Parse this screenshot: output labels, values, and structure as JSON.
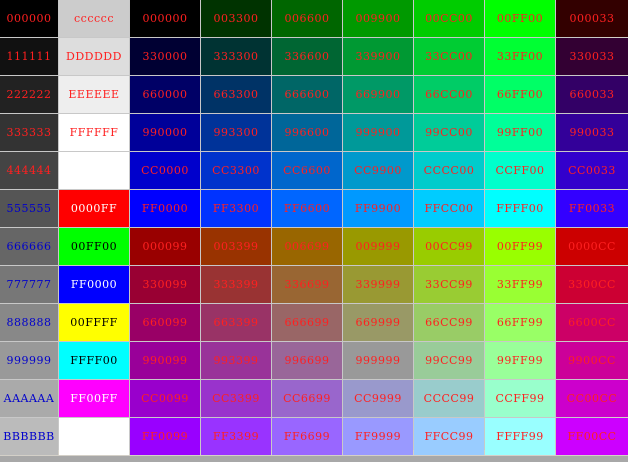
{
  "table": {
    "columns": [
      {
        "cells": [
          {
            "label": "000000",
            "bg": "#000000",
            "fg": "#ff2020"
          },
          {
            "label": "111111",
            "bg": "#111111",
            "fg": "#ff2020"
          },
          {
            "label": "222222",
            "bg": "#222222",
            "fg": "#ff2020"
          },
          {
            "label": "333333",
            "bg": "#333333",
            "fg": "#ff2020"
          },
          {
            "label": "444444",
            "bg": "#444444",
            "fg": "#ff2020"
          },
          {
            "label": "555555",
            "bg": "#555555",
            "fg": "#0000cc"
          },
          {
            "label": "666666",
            "bg": "#666666",
            "fg": "#0000cc"
          },
          {
            "label": "777777",
            "bg": "#777777",
            "fg": "#0000cc"
          },
          {
            "label": "888888",
            "bg": "#888888",
            "fg": "#0000cc"
          },
          {
            "label": "999999",
            "bg": "#999999",
            "fg": "#0000cc"
          },
          {
            "label": "AAAAAA",
            "bg": "#aaaaaa",
            "fg": "#0000cc"
          },
          {
            "label": "BBBBBB",
            "bg": "#bbbbbb",
            "fg": "#0000cc"
          }
        ]
      },
      {
        "cells": [
          {
            "label": "cccccc",
            "bg": "#cccccc",
            "fg": "#ff2020"
          },
          {
            "label": "DDDDDD",
            "bg": "#dddddd",
            "fg": "#ff2020"
          },
          {
            "label": "EEEEEE",
            "bg": "#eeeeee",
            "fg": "#ff2020"
          },
          {
            "label": "FFFFFF",
            "bg": "#ffffff",
            "fg": "#ff2020"
          },
          {
            "label": "",
            "bg": "#ffffff",
            "fg": "#ff2020"
          },
          {
            "label": "0000FF",
            "bg": "#ff0000",
            "fg": "#ffffff"
          },
          {
            "label": "00FF00",
            "bg": "#00ff00",
            "fg": "#000000"
          },
          {
            "label": "FF0000",
            "bg": "#0000ff",
            "fg": "#ffffff"
          },
          {
            "label": "00FFFF",
            "bg": "#ffff00",
            "fg": "#000000"
          },
          {
            "label": "FFFF00",
            "bg": "#00ffff",
            "fg": "#000000"
          },
          {
            "label": "FF00FF",
            "bg": "#ff00ff",
            "fg": "#ffffff"
          },
          {
            "label": "",
            "bg": "#ffffff",
            "fg": "#000000"
          }
        ]
      },
      {
        "cells": [
          {
            "label": "000000",
            "bg": "#000000",
            "fg": "#ff2020"
          },
          {
            "label": "330000",
            "bg": "#000033",
            "fg": "#ff2020"
          },
          {
            "label": "660000",
            "bg": "#000066",
            "fg": "#ff2020"
          },
          {
            "label": "990000",
            "bg": "#000099",
            "fg": "#ff2020"
          },
          {
            "label": "CC0000",
            "bg": "#0000cc",
            "fg": "#ff2020"
          },
          {
            "label": "FF0000",
            "bg": "#0000ff",
            "fg": "#ff2020"
          },
          {
            "label": "000099",
            "bg": "#990000",
            "fg": "#ff2020"
          },
          {
            "label": "330099",
            "bg": "#990033",
            "fg": "#ff2020"
          },
          {
            "label": "660099",
            "bg": "#990066",
            "fg": "#ff2020"
          },
          {
            "label": "990099",
            "bg": "#990099",
            "fg": "#ff2020"
          },
          {
            "label": "CC0099",
            "bg": "#9900cc",
            "fg": "#ff2020"
          },
          {
            "label": "FF0099",
            "bg": "#9900ff",
            "fg": "#ff2020"
          }
        ]
      },
      {
        "cells": [
          {
            "label": "003300",
            "bg": "#003300",
            "fg": "#ff2020"
          },
          {
            "label": "333300",
            "bg": "#003333",
            "fg": "#ff2020"
          },
          {
            "label": "663300",
            "bg": "#003366",
            "fg": "#ff2020"
          },
          {
            "label": "993300",
            "bg": "#003399",
            "fg": "#ff2020"
          },
          {
            "label": "CC3300",
            "bg": "#0033cc",
            "fg": "#ff2020"
          },
          {
            "label": "FF3300",
            "bg": "#0033ff",
            "fg": "#ff2020"
          },
          {
            "label": "003399",
            "bg": "#993300",
            "fg": "#ff2020"
          },
          {
            "label": "333399",
            "bg": "#993333",
            "fg": "#ff2020"
          },
          {
            "label": "663399",
            "bg": "#993366",
            "fg": "#ff2020"
          },
          {
            "label": "993399",
            "bg": "#993399",
            "fg": "#ff2020"
          },
          {
            "label": "CC3399",
            "bg": "#9933cc",
            "fg": "#ff2020"
          },
          {
            "label": "FF3399",
            "bg": "#9933ff",
            "fg": "#ff2020"
          }
        ]
      },
      {
        "cells": [
          {
            "label": "006600",
            "bg": "#006600",
            "fg": "#ff2020"
          },
          {
            "label": "336600",
            "bg": "#006633",
            "fg": "#ff2020"
          },
          {
            "label": "666600",
            "bg": "#006666",
            "fg": "#ff2020"
          },
          {
            "label": "996600",
            "bg": "#006699",
            "fg": "#ff2020"
          },
          {
            "label": "CC6600",
            "bg": "#0066cc",
            "fg": "#ff2020"
          },
          {
            "label": "FF6600",
            "bg": "#0066ff",
            "fg": "#ff2020"
          },
          {
            "label": "006699",
            "bg": "#996600",
            "fg": "#ff2020"
          },
          {
            "label": "336699",
            "bg": "#996633",
            "fg": "#ff2020"
          },
          {
            "label": "666699",
            "bg": "#996666",
            "fg": "#ff2020"
          },
          {
            "label": "996699",
            "bg": "#996699",
            "fg": "#ff2020"
          },
          {
            "label": "CC6699",
            "bg": "#9966cc",
            "fg": "#ff2020"
          },
          {
            "label": "FF6699",
            "bg": "#9966ff",
            "fg": "#ff2020"
          }
        ]
      },
      {
        "cells": [
          {
            "label": "009900",
            "bg": "#009900",
            "fg": "#ff2020"
          },
          {
            "label": "339900",
            "bg": "#009933",
            "fg": "#ff2020"
          },
          {
            "label": "669900",
            "bg": "#009966",
            "fg": "#ff2020"
          },
          {
            "label": "999900",
            "bg": "#009999",
            "fg": "#ff2020"
          },
          {
            "label": "CC9900",
            "bg": "#0099cc",
            "fg": "#ff2020"
          },
          {
            "label": "FF9900",
            "bg": "#0099ff",
            "fg": "#ff2020"
          },
          {
            "label": "009999",
            "bg": "#999900",
            "fg": "#ff2020"
          },
          {
            "label": "339999",
            "bg": "#999933",
            "fg": "#ff2020"
          },
          {
            "label": "669999",
            "bg": "#999966",
            "fg": "#ff2020"
          },
          {
            "label": "999999",
            "bg": "#999999",
            "fg": "#ff2020"
          },
          {
            "label": "CC9999",
            "bg": "#9999cc",
            "fg": "#ff2020"
          },
          {
            "label": "FF9999",
            "bg": "#9999ff",
            "fg": "#ff2020"
          }
        ]
      },
      {
        "cells": [
          {
            "label": "00CC00",
            "bg": "#00cc00",
            "fg": "#ff2020"
          },
          {
            "label": "33CC00",
            "bg": "#00cc33",
            "fg": "#ff2020"
          },
          {
            "label": "66CC00",
            "bg": "#00cc66",
            "fg": "#ff2020"
          },
          {
            "label": "99CC00",
            "bg": "#00cc99",
            "fg": "#ff2020"
          },
          {
            "label": "CCCC00",
            "bg": "#00cccc",
            "fg": "#ff2020"
          },
          {
            "label": "FFCC00",
            "bg": "#00ccff",
            "fg": "#ff2020"
          },
          {
            "label": "00CC99",
            "bg": "#99cc00",
            "fg": "#ff2020"
          },
          {
            "label": "33CC99",
            "bg": "#99cc33",
            "fg": "#ff2020"
          },
          {
            "label": "66CC99",
            "bg": "#99cc66",
            "fg": "#ff2020"
          },
          {
            "label": "99CC99",
            "bg": "#99cc99",
            "fg": "#ff2020"
          },
          {
            "label": "CCCC99",
            "bg": "#99cccc",
            "fg": "#ff2020"
          },
          {
            "label": "FFCC99",
            "bg": "#99ccff",
            "fg": "#ff2020"
          }
        ]
      },
      {
        "cells": [
          {
            "label": "00FF00",
            "bg": "#00ff00",
            "fg": "#ff2020"
          },
          {
            "label": "33FF00",
            "bg": "#00ff33",
            "fg": "#ff2020"
          },
          {
            "label": "66FF00",
            "bg": "#00ff66",
            "fg": "#ff2020"
          },
          {
            "label": "99FF00",
            "bg": "#00ff99",
            "fg": "#ff2020"
          },
          {
            "label": "CCFF00",
            "bg": "#00ffcc",
            "fg": "#ff2020"
          },
          {
            "label": "FFFF00",
            "bg": "#00ffff",
            "fg": "#ff2020"
          },
          {
            "label": "00FF99",
            "bg": "#99ff00",
            "fg": "#ff2020"
          },
          {
            "label": "33FF99",
            "bg": "#99ff33",
            "fg": "#ff2020"
          },
          {
            "label": "66FF99",
            "bg": "#99ff66",
            "fg": "#ff2020"
          },
          {
            "label": "99FF99",
            "bg": "#99ff99",
            "fg": "#ff2020"
          },
          {
            "label": "CCFF99",
            "bg": "#99ffcc",
            "fg": "#ff2020"
          },
          {
            "label": "FFFF99",
            "bg": "#99ffff",
            "fg": "#ff2020"
          }
        ]
      },
      {
        "cells": [
          {
            "label": "000033",
            "bg": "#330000",
            "fg": "#ff2020"
          },
          {
            "label": "330033",
            "bg": "#330033",
            "fg": "#ff2020"
          },
          {
            "label": "660033",
            "bg": "#330066",
            "fg": "#ff2020"
          },
          {
            "label": "990033",
            "bg": "#330099",
            "fg": "#ff2020"
          },
          {
            "label": "CC0033",
            "bg": "#3300cc",
            "fg": "#ff2020"
          },
          {
            "label": "FF0033",
            "bg": "#3300ff",
            "fg": "#ff2020"
          },
          {
            "label": "0000CC",
            "bg": "#cc0000",
            "fg": "#ff2020"
          },
          {
            "label": "3300CC",
            "bg": "#cc0033",
            "fg": "#ff2020"
          },
          {
            "label": "6600CC",
            "bg": "#cc0066",
            "fg": "#ff2020"
          },
          {
            "label": "9900CC",
            "bg": "#cc0099",
            "fg": "#ff2020"
          },
          {
            "label": "CC00CC",
            "bg": "#cc00cc",
            "fg": "#ff2020"
          },
          {
            "label": "FF00CC",
            "bg": "#cc00ff",
            "fg": "#ff2020"
          }
        ]
      }
    ]
  }
}
